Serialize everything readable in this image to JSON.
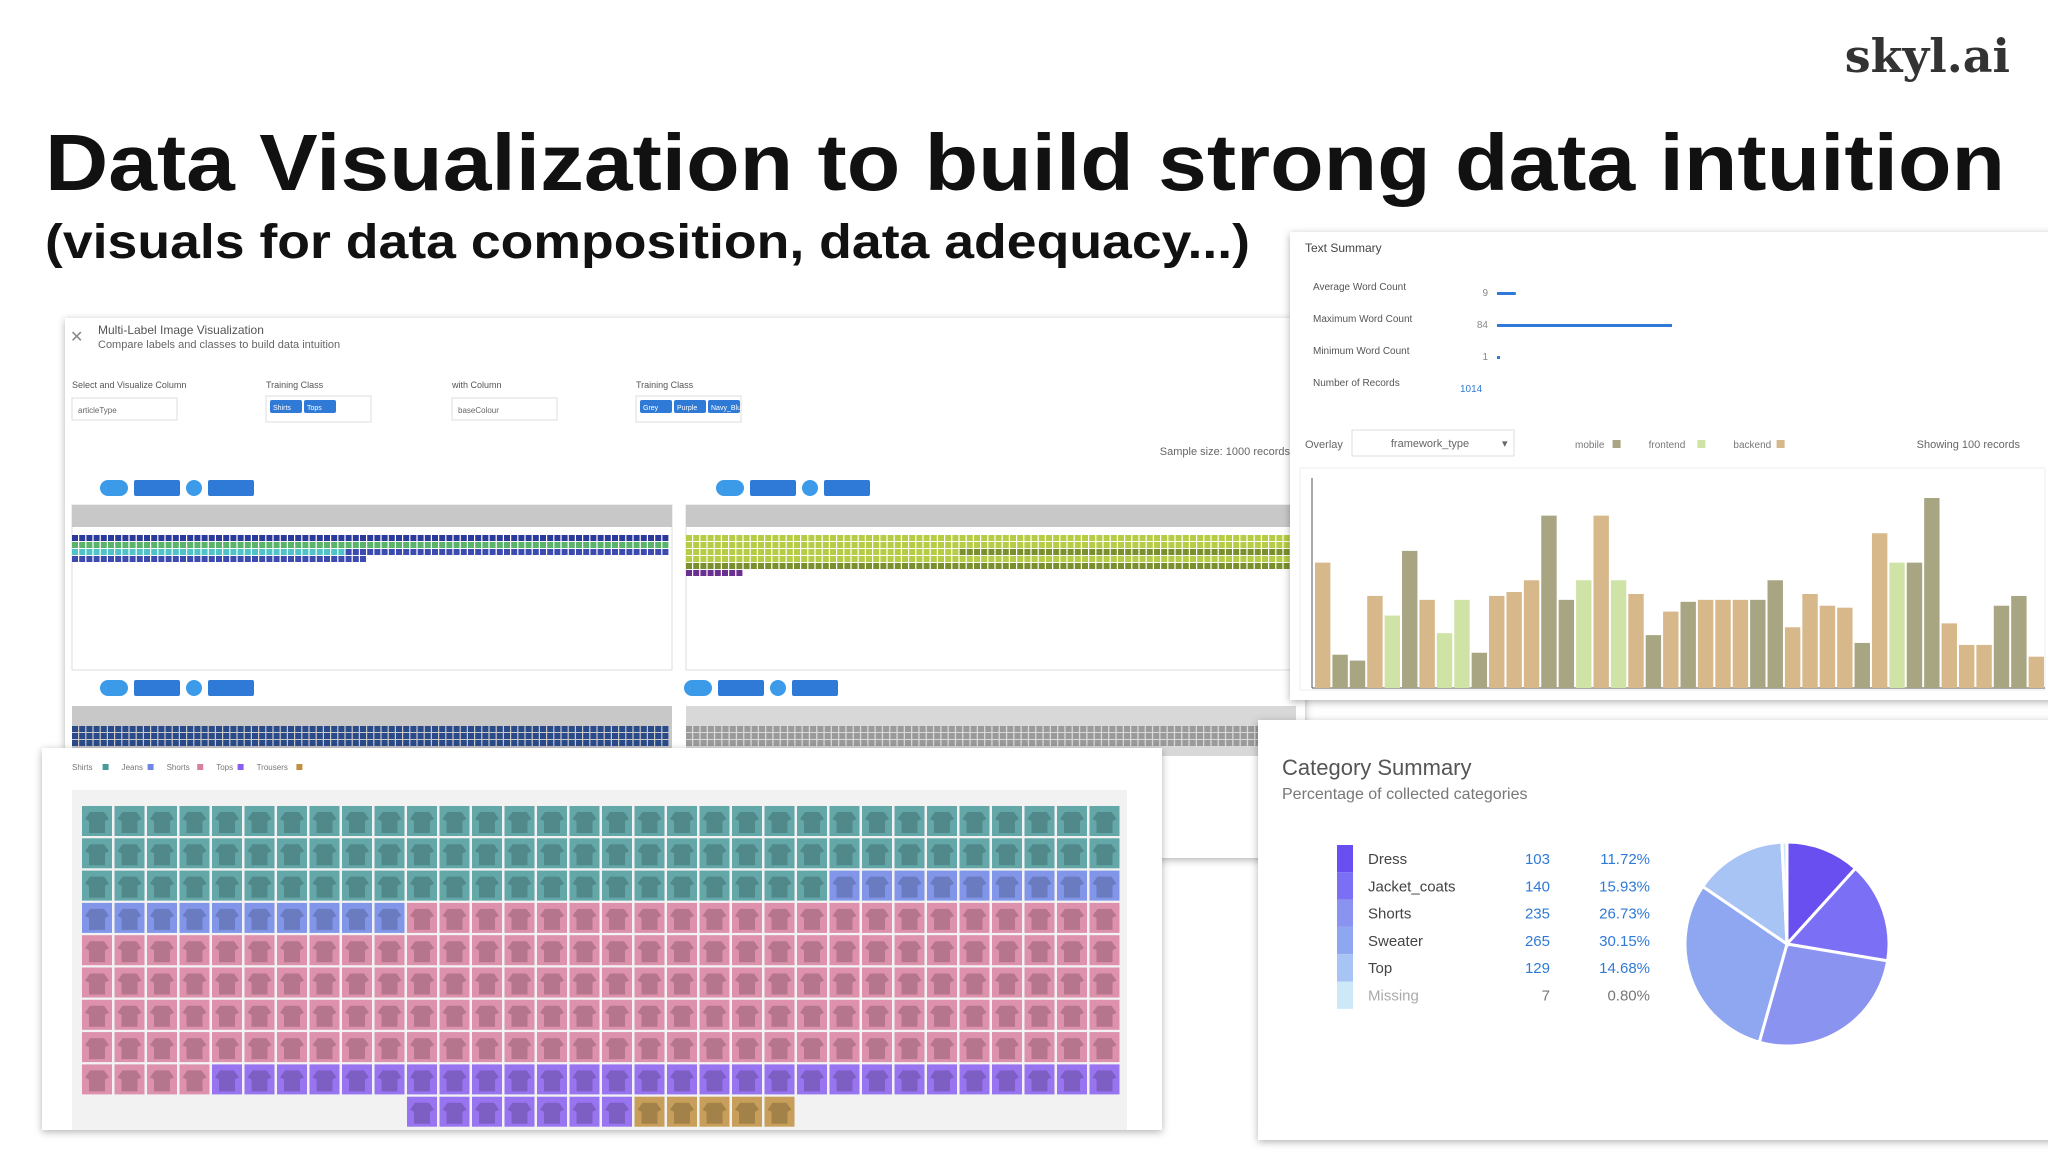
{
  "logo": "skyl.ai",
  "title": "Data Visualization to build strong data intuition",
  "subtitle": "(visuals for data composition, data adequacy...)",
  "image_viz": {
    "title": "Multi-Label Image Visualization",
    "subtitle": "Compare labels and classes to build data intuition",
    "controls": [
      {
        "label": "Select and Visualize Column",
        "value": "articleType"
      },
      {
        "label": "Training Class",
        "chips": [
          "Shirts",
          "Tops"
        ]
      },
      {
        "label": "with Column",
        "value": "baseColour"
      },
      {
        "label": "Training Class",
        "chips": [
          "Grey",
          "Purple",
          "Navy_Blue"
        ]
      }
    ],
    "sample_note": "Sample size: 1000 records"
  },
  "text_summary": {
    "title": "Text Summary",
    "rows": [
      {
        "label": "Average Word Count",
        "value": 9
      },
      {
        "label": "Maximum Word Count",
        "value": 84
      },
      {
        "label": "Minimum Word Count",
        "value": 1
      },
      {
        "label": "Number of Records",
        "value": 1014
      }
    ],
    "overlay_label": "Overlay",
    "overlay_value": "framework_type",
    "showing": "Showing 100 records",
    "chart": {
      "type": "bar",
      "series": [
        {
          "name": "mobile",
          "color": "#a8a583",
          "values": [
            null,
            17,
            14,
            null,
            null,
            70,
            null,
            null,
            null,
            18,
            null,
            null,
            null,
            88,
            45,
            null,
            null,
            null,
            null,
            27,
            null,
            44,
            null,
            null,
            null,
            45,
            55,
            null,
            null,
            null,
            null,
            23,
            null,
            null,
            64,
            97,
            null,
            null,
            null,
            42,
            47,
            null
          ]
        },
        {
          "name": "frontend",
          "color": "#cfe3a7",
          "values": [
            null,
            null,
            null,
            null,
            37,
            null,
            null,
            28,
            45,
            null,
            null,
            null,
            null,
            null,
            null,
            55,
            null,
            55,
            null,
            null,
            null,
            null,
            null,
            null,
            null,
            null,
            null,
            null,
            null,
            null,
            null,
            null,
            null,
            64,
            null,
            null,
            null,
            null,
            null,
            null,
            null,
            null
          ]
        },
        {
          "name": "backend",
          "color": "#d6b88a",
          "values": [
            64,
            null,
            null,
            47,
            null,
            null,
            45,
            null,
            null,
            null,
            47,
            49,
            55,
            null,
            null,
            null,
            88,
            null,
            48,
            null,
            39,
            null,
            45,
            45,
            45,
            null,
            null,
            31,
            48,
            42,
            41,
            null,
            79,
            null,
            null,
            null,
            33,
            22,
            22,
            null,
            null,
            16
          ]
        }
      ]
    }
  },
  "image_grid": {
    "legend": [
      {
        "name": "Shirts",
        "color": "#4a9a9c"
      },
      {
        "name": "Jeans",
        "color": "#6f86e8"
      },
      {
        "name": "Shorts",
        "color": "#d980a0"
      },
      {
        "name": "Tops",
        "color": "#8a5ef0"
      },
      {
        "name": "Trousers",
        "color": "#c09040"
      }
    ]
  },
  "category_summary": {
    "title": "Category Summary",
    "subtitle": "Percentage of collected categories",
    "rows": [
      {
        "label": "Dress",
        "count": 103,
        "percent": "11.72%",
        "color": "#6a4ff0"
      },
      {
        "label": "Jacket_coats",
        "count": 140,
        "percent": "15.93%",
        "color": "#7b6ff5"
      },
      {
        "label": "Shorts",
        "count": 235,
        "percent": "26.73%",
        "color": "#8b93f0"
      },
      {
        "label": "Sweater",
        "count": 265,
        "percent": "30.15%",
        "color": "#8fa6f0"
      },
      {
        "label": "Top",
        "count": 129,
        "percent": "14.68%",
        "color": "#a8c4f5"
      },
      {
        "label": "Missing",
        "count": 7,
        "percent": "0.80%",
        "color": "#cde8f8"
      }
    ]
  }
}
